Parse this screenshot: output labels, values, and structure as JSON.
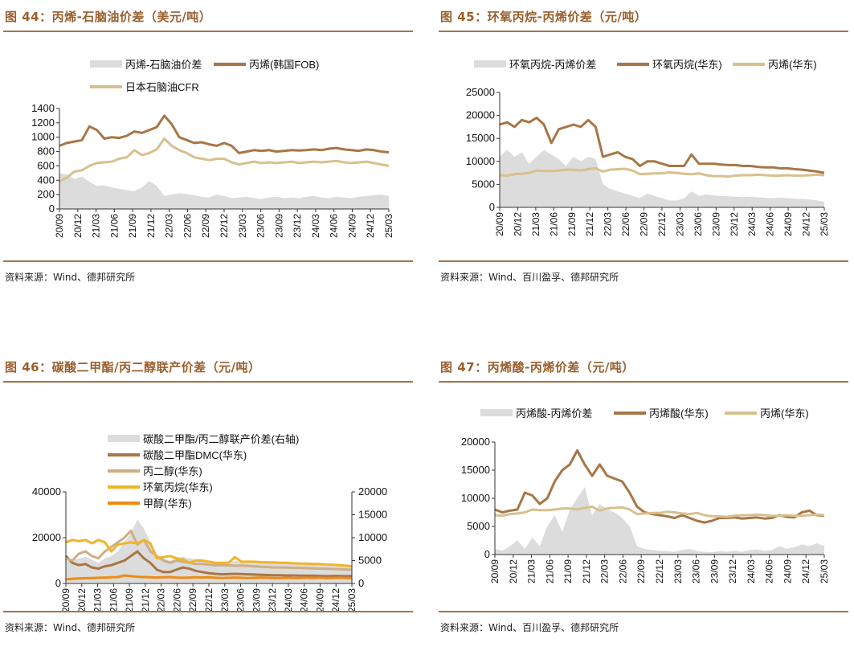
{
  "colors": {
    "spread": "#dcdcdc",
    "brown": "#a87646",
    "tan": "#d8c08e",
    "lightbrown": "#cfae86",
    "yellow": "#f0b428",
    "orange": "#ef8a12",
    "title": "#9a5f2c",
    "rule": "#a27449"
  },
  "charts": [
    {
      "title": "图 44：丙烯-石脑油价差（美元/吨）",
      "source": "资料来源：Wind、德邦研究所",
      "chart_data": {
        "type": "area+line",
        "x_ticks": [
          "20/09",
          "20/12",
          "21/03",
          "21/06",
          "21/09",
          "21/12",
          "22/03",
          "22/06",
          "22/09",
          "22/12",
          "23/03",
          "23/06",
          "23/09",
          "23/12",
          "24/03",
          "24/06",
          "24/09",
          "24/12",
          "25/03"
        ],
        "y_left": {
          "min": 0,
          "max": 1400,
          "ticks": [
            0,
            200,
            400,
            600,
            800,
            1000,
            1200,
            1400
          ]
        },
        "series": [
          {
            "name": "丙烯-石脑油价差",
            "kind": "area",
            "color_key": "spread",
            "axis": "left",
            "values": [
              500,
              480,
              420,
              450,
              380,
              320,
              330,
              300,
              280,
              260,
              250,
              300,
              390,
              320,
              180,
              200,
              220,
              210,
              190,
              170,
              160,
              200,
              180,
              150,
              160,
              170,
              150,
              140,
              160,
              170,
              150,
              160,
              150,
              170,
              180,
              160,
              150,
              170,
              160,
              150,
              170,
              180,
              190,
              200,
              180
            ]
          },
          {
            "name": "丙烯(韩国FOB)",
            "kind": "line",
            "color_key": "brown",
            "axis": "left",
            "values": [
              880,
              920,
              940,
              960,
              1150,
              1100,
              980,
              1000,
              990,
              1020,
              1080,
              1060,
              1100,
              1140,
              1300,
              1180,
              1000,
              960,
              920,
              930,
              900,
              880,
              920,
              880,
              780,
              800,
              820,
              810,
              820,
              800,
              810,
              820,
              815,
              820,
              830,
              820,
              840,
              850,
              830,
              820,
              810,
              830,
              820,
              800,
              790
            ]
          },
          {
            "name": "日本石脑油CFR",
            "kind": "line",
            "color_key": "tan",
            "axis": "left",
            "values": [
              380,
              440,
              520,
              540,
              600,
              640,
              650,
              660,
              700,
              720,
              820,
              750,
              780,
              830,
              980,
              880,
              820,
              780,
              720,
              700,
              680,
              700,
              700,
              650,
              620,
              640,
              660,
              640,
              650,
              640,
              650,
              660,
              640,
              650,
              660,
              650,
              660,
              670,
              650,
              640,
              650,
              660,
              640,
              620,
              600
            ]
          }
        ]
      }
    },
    {
      "title": "图 45：环氧丙烷-丙烯价差（元/吨）",
      "source": "资料来源：Wind、百川盈孚、德邦研究所",
      "chart_data": {
        "type": "area+line",
        "x_ticks": [
          "20/09",
          "20/12",
          "21/03",
          "21/06",
          "21/09",
          "21/12",
          "22/03",
          "22/06",
          "22/09",
          "22/12",
          "23/03",
          "23/06",
          "23/09",
          "23/12",
          "24/03",
          "24/06",
          "24/09",
          "24/12",
          "25/03"
        ],
        "y_left": {
          "min": 0,
          "max": 25000,
          "ticks": [
            0,
            5000,
            10000,
            15000,
            20000,
            25000
          ]
        },
        "series": [
          {
            "name": "环氧丙烷-丙烯价差",
            "kind": "area",
            "color_key": "spread",
            "axis": "left",
            "values": [
              11000,
              12500,
              11000,
              12000,
              9500,
              11000,
              12500,
              11500,
              10500,
              9000,
              11000,
              10000,
              11000,
              10500,
              5000,
              4000,
              3500,
              3000,
              2500,
              2000,
              3000,
              2500,
              2000,
              1500,
              1500,
              2000,
              3500,
              2500,
              2800,
              2600,
              2500,
              2400,
              2300,
              2200,
              2300,
              2200,
              2100,
              2000,
              2100,
              2000,
              1900,
              1800,
              1700,
              1500,
              1200
            ]
          },
          {
            "name": "环氧丙烷(华东)",
            "kind": "line",
            "color_key": "brown",
            "axis": "left",
            "values": [
              18000,
              18500,
              17500,
              19000,
              18500,
              19500,
              18000,
              14000,
              17000,
              17500,
              18000,
              17500,
              19000,
              17500,
              11000,
              11500,
              12000,
              11000,
              10500,
              9000,
              10000,
              10000,
              9500,
              9000,
              9000,
              9000,
              11500,
              9500,
              9500,
              9500,
              9300,
              9200,
              9200,
              9000,
              9000,
              8800,
              8700,
              8700,
              8500,
              8500,
              8300,
              8200,
              8000,
              7800,
              7500
            ]
          },
          {
            "name": "丙烯(华东)",
            "kind": "line",
            "color_key": "tan",
            "axis": "left",
            "values": [
              7000,
              6900,
              7200,
              7300,
              7500,
              8000,
              7900,
              7900,
              8000,
              8200,
              8200,
              8000,
              8300,
              8500,
              7800,
              8200,
              8300,
              8400,
              8000,
              7200,
              7300,
              7400,
              7400,
              7600,
              7500,
              7300,
              7200,
              7400,
              7000,
              6800,
              6800,
              6700,
              6900,
              7000,
              7000,
              7100,
              7000,
              6900,
              6900,
              7000,
              6900,
              6900,
              7000,
              7100,
              7000
            ]
          }
        ]
      }
    },
    {
      "title": "图 46：碳酸二甲酯/丙二醇联产价差（元/吨）",
      "source": "资料来源：Wind、德邦研究所",
      "chart_data": {
        "type": "area+line",
        "x_ticks": [
          "20/09",
          "20/12",
          "21/03",
          "21/06",
          "21/09",
          "21/12",
          "22/03",
          "22/06",
          "22/09",
          "22/12",
          "23/03",
          "23/06",
          "23/09",
          "23/12",
          "24/03",
          "24/06",
          "24/09",
          "24/12",
          "25/03"
        ],
        "y_left": {
          "min": 0,
          "max": 40000,
          "ticks": [
            0,
            20000,
            40000
          ]
        },
        "y_right": {
          "min": 0,
          "max": 20000,
          "ticks": [
            0,
            5000,
            10000,
            15000,
            20000
          ]
        },
        "series": [
          {
            "name": "碳酸二甲酯/丙二醇联产价差(右轴)",
            "kind": "area",
            "color_key": "spread",
            "axis": "right",
            "values": [
              6000,
              5000,
              5500,
              5800,
              5200,
              4500,
              5500,
              6000,
              7000,
              9000,
              11000,
              14000,
              12000,
              9000,
              6000,
              5500,
              5000,
              5500,
              5800,
              5500,
              5300,
              5000,
              4800,
              4500,
              4600,
              4800,
              4900,
              4800,
              4700,
              4600,
              4500,
              4400,
              4500,
              4400,
              4300,
              4400,
              4300,
              4200,
              4100,
              4000,
              3900,
              3800,
              3900,
              4000,
              3700
            ]
          },
          {
            "name": "碳酸二甲酯DMC(华东)",
            "kind": "line",
            "color_key": "brown",
            "axis": "left",
            "values": [
              12000,
              9000,
              8000,
              8500,
              7000,
              6500,
              7500,
              8000,
              9000,
              10000,
              12000,
              14000,
              11000,
              9000,
              6000,
              5000,
              5000,
              6000,
              7000,
              6500,
              5500,
              5000,
              4500,
              4200,
              4000,
              4100,
              4200,
              4100,
              4000,
              3900,
              3800,
              3700,
              3600,
              3600,
              3500,
              3500,
              3400,
              3400,
              3400,
              3300,
              3200,
              3300,
              3300,
              3200,
              3300
            ]
          },
          {
            "name": "丙二醇(华东)",
            "kind": "line",
            "color_key": "lightbrown",
            "axis": "left",
            "values": [
              11000,
              10000,
              13000,
              14000,
              12000,
              11000,
              14000,
              16000,
              18000,
              20000,
              23000,
              17000,
              19000,
              14000,
              12000,
              10000,
              9000,
              10000,
              9500,
              9000,
              8500,
              8500,
              8200,
              8000,
              8000,
              7900,
              7800,
              7800,
              7700,
              7500,
              7300,
              7200,
              7000,
              7000,
              6900,
              6800,
              6800,
              6700,
              6600,
              6500,
              6400,
              6300,
              6200,
              6100,
              6000
            ]
          },
          {
            "name": "环氧丙烷(华东)",
            "kind": "line",
            "color_key": "yellow",
            "axis": "left",
            "values": [
              18000,
              19000,
              18500,
              19000,
              17500,
              19000,
              18000,
              14000,
              17000,
              17500,
              18000,
              17500,
              19000,
              17500,
              11000,
              11500,
              12000,
              11000,
              10500,
              9000,
              10000,
              10000,
              9500,
              9000,
              9000,
              9000,
              11500,
              9500,
              9500,
              9500,
              9300,
              9200,
              9200,
              9000,
              9000,
              8800,
              8700,
              8700,
              8500,
              8500,
              8300,
              8200,
              8000,
              7800,
              7500
            ]
          },
          {
            "name": "甲醇(华东)",
            "kind": "line",
            "color_key": "orange",
            "axis": "left",
            "values": [
              1800,
              2000,
              2200,
              2300,
              2400,
              2500,
              2600,
              2700,
              2800,
              3500,
              3200,
              2900,
              2800,
              2700,
              2600,
              2700,
              2800,
              2600,
              2500,
              2600,
              2700,
              2600,
              2700,
              2500,
              2400,
              2500,
              2600,
              2500,
              2400,
              2500,
              2600,
              2500,
              2400,
              2400,
              2500,
              2400,
              2400,
              2500,
              2400,
              2500,
              2400,
              2400,
              2500,
              2400,
              2300
            ]
          }
        ]
      }
    },
    {
      "title": "图 47：丙烯酸-丙烯价差（元/吨）",
      "source": "资料来源：Wind、百川盈孚、德邦研究所",
      "chart_data": {
        "type": "area+line",
        "x_ticks": [
          "20/09",
          "20/12",
          "21/03",
          "21/06",
          "21/09",
          "21/12",
          "22/03",
          "22/06",
          "22/09",
          "22/12",
          "23/03",
          "23/06",
          "23/09",
          "23/12",
          "24/03",
          "24/06",
          "24/09",
          "24/12",
          "25/03"
        ],
        "y_left": {
          "min": 0,
          "max": 20000,
          "ticks": [
            0,
            5000,
            10000,
            15000,
            20000
          ]
        },
        "series": [
          {
            "name": "丙烯酸-丙烯价差",
            "kind": "area",
            "color_key": "spread",
            "axis": "left",
            "values": [
              1000,
              700,
              1500,
              2500,
              1000,
              3000,
              1500,
              5000,
              7000,
              4000,
              8000,
              10000,
              12000,
              7000,
              9000,
              8000,
              7500,
              6500,
              5000,
              1500,
              1000,
              800,
              700,
              600,
              500,
              800,
              1000,
              600,
              500,
              400,
              600,
              500,
              700,
              500,
              800,
              900,
              700,
              800,
              1500,
              1000,
              1300,
              1800,
              1500,
              2000,
              1500
            ]
          },
          {
            "name": "丙烯酸(华东)",
            "kind": "line",
            "color_key": "brown",
            "axis": "left",
            "values": [
              8000,
              7500,
              7800,
              8000,
              11000,
              10500,
              9000,
              10000,
              13000,
              15000,
              16000,
              18500,
              16000,
              14000,
              16000,
              14000,
              13500,
              13000,
              11000,
              8500,
              7500,
              7200,
              7000,
              6800,
              6500,
              7000,
              6500,
              6000,
              5700,
              6000,
              6500,
              6500,
              6600,
              6400,
              6500,
              6600,
              6400,
              6500,
              7000,
              6700,
              6600,
              7500,
              7800,
              7000,
              6900
            ]
          },
          {
            "name": "丙烯(华东)",
            "kind": "line",
            "color_key": "tan",
            "axis": "left",
            "values": [
              7000,
              6900,
              7200,
              7300,
              7500,
              8000,
              7900,
              7900,
              8000,
              8200,
              8200,
              8000,
              8300,
              8500,
              7800,
              8200,
              8300,
              8400,
              8000,
              7200,
              7300,
              7400,
              7400,
              7600,
              7500,
              7300,
              7200,
              7400,
              7000,
              6800,
              6800,
              6700,
              6900,
              7000,
              7000,
              7100,
              7000,
              6900,
              6900,
              7000,
              6900,
              6900,
              7000,
              7100,
              7000
            ]
          }
        ]
      }
    }
  ]
}
